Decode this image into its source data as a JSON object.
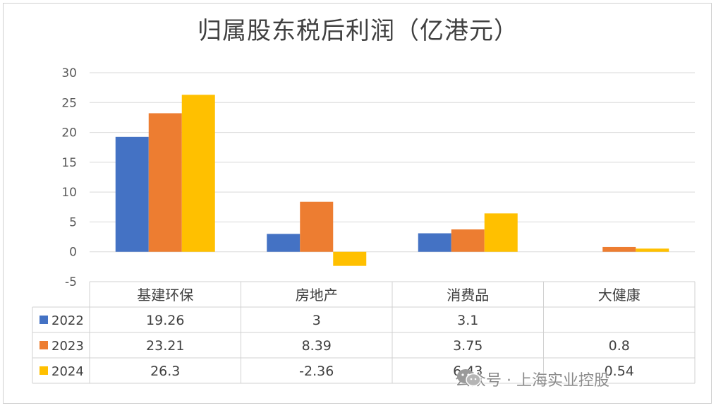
{
  "chart_data": {
    "type": "bar",
    "title": "归属股东税后利润（亿港元）",
    "categories": [
      "基建环保",
      "房地产",
      "消费品",
      "大健康"
    ],
    "series": [
      {
        "name": "2022",
        "color": "#4472C4",
        "values": [
          19.26,
          3,
          3.1,
          null
        ],
        "labels": [
          "19.26",
          "3",
          "3.1",
          ""
        ]
      },
      {
        "name": "2023",
        "color": "#ED7D31",
        "values": [
          23.21,
          8.39,
          3.75,
          0.8
        ],
        "labels": [
          "23.21",
          "8.39",
          "3.75",
          "0.8"
        ]
      },
      {
        "name": "2024",
        "color": "#FFC000",
        "values": [
          26.3,
          -2.36,
          6.43,
          0.54
        ],
        "labels": [
          "26.3",
          "-2.36",
          "6.43",
          "0.54"
        ]
      }
    ],
    "ylim": [
      -5,
      30
    ],
    "yticks": [
      -5,
      0,
      5,
      10,
      15,
      20,
      25,
      30
    ],
    "grid": true,
    "legend": "data-table"
  },
  "watermark": {
    "icon": "wechat-icon",
    "text": "公众号 · 上海实业控股"
  }
}
